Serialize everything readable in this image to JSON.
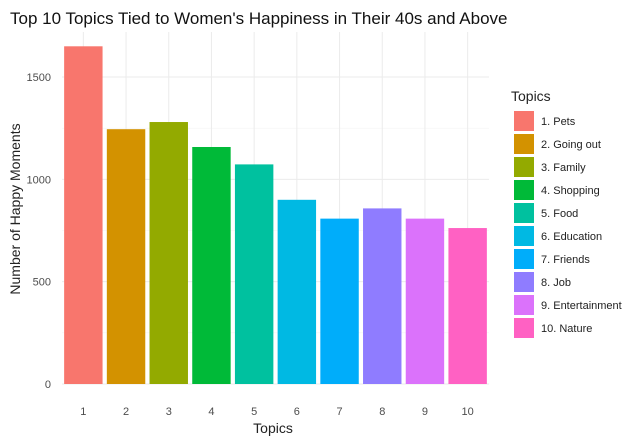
{
  "chart_data": {
    "type": "bar",
    "title": "Top 10 Topics Tied to Women's Happiness in Their 40s and Above",
    "xlabel": "Topics",
    "ylabel": "Number of Happy Moments",
    "categories": [
      "1",
      "2",
      "3",
      "4",
      "5",
      "6",
      "7",
      "8",
      "9",
      "10"
    ],
    "values": [
      1650,
      1245,
      1280,
      1158,
      1073,
      900,
      808,
      858,
      808,
      762
    ],
    "ylim": [
      0,
      1750
    ],
    "yticks": [
      0,
      500,
      1000,
      1500
    ],
    "grid": true,
    "legend": {
      "title": "Topics",
      "position": "right",
      "entries": [
        "1. Pets",
        "2. Going out",
        "3. Family",
        "4. Shopping",
        "5. Food",
        "6. Education",
        "7. Friends",
        "8. Job",
        "9. Entertainment",
        "10. Nature"
      ]
    },
    "colors": [
      "#F8766D",
      "#D39200",
      "#93AA00",
      "#00BA38",
      "#00C19F",
      "#00B9E3",
      "#00ADFA",
      "#8F7CFF",
      "#DB72FB",
      "#FF61C3"
    ]
  }
}
